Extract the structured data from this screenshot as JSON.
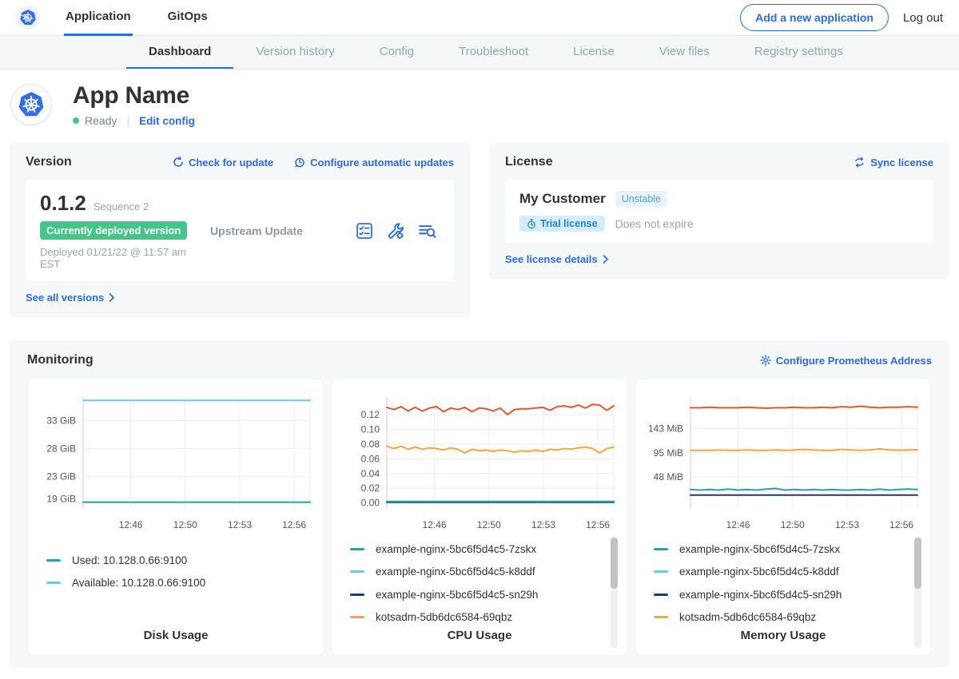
{
  "colors": {
    "accent": "#2b6ce6",
    "brand_blue": "#326de6",
    "green": "#44c58a",
    "teal": "#28a3a3",
    "light_blue": "#6fc9e4",
    "navy": "#203a70",
    "orange": "#f7a43c",
    "red_orange": "#e8562f",
    "panel_bg": "#f5f8f9"
  },
  "icons": {
    "brand": "kubernetes-logo",
    "check_update": "refresh-icon",
    "auto_update": "clock-refresh-icon",
    "version_diff": "checklist-icon",
    "version_tools": "wrench-gear-icon",
    "version_logs": "file-search-icon",
    "sync": "sync-arrows-icon",
    "trial": "stopwatch-icon",
    "prometheus": "gear-icon",
    "see_more": "chevron-right-icon",
    "status": "green-dot"
  },
  "nav": {
    "tabs": [
      {
        "label": "Application"
      },
      {
        "label": "GitOps"
      }
    ],
    "active_tab": "Application",
    "add_button_label": "Add a new application",
    "logout_label": "Log out"
  },
  "subnav": {
    "tabs": [
      "Dashboard",
      "Version history",
      "Config",
      "Troubleshoot",
      "License",
      "View files",
      "Registry settings"
    ],
    "active": "Dashboard"
  },
  "app_header": {
    "name": "App Name",
    "status_label": "Ready",
    "edit_config_label": "Edit config"
  },
  "version_card": {
    "title": "Version",
    "check_update_label": "Check for update",
    "auto_update_label": "Configure automatic updates",
    "version_number": "0.1.2",
    "sequence": "Sequence 2",
    "deployed_badge": "Currently deployed version",
    "deployed_at": "Deployed 01/21/22 @ 11:57 am EST",
    "source": "Upstream Update",
    "see_all_label": "See all versions"
  },
  "license_card": {
    "title": "License",
    "sync_label": "Sync license",
    "customer": "My Customer",
    "channel_badge": "Unstable",
    "type_badge": "Trial license",
    "expiry": "Does not expire",
    "details_label": "See license details"
  },
  "monitoring": {
    "title": "Monitoring",
    "configure_label": "Configure Prometheus Address"
  },
  "chart_data": [
    {
      "type": "line",
      "title": "Disk Usage",
      "xticks": [
        "12:46",
        "12:50",
        "12:53",
        "12:56"
      ],
      "ylim": [
        17.2,
        37.2
      ],
      "yticks": [
        {
          "label": "33 GiB",
          "value": 33
        },
        {
          "label": "28 GiB",
          "value": 28
        },
        {
          "label": "23 GiB",
          "value": 23
        },
        {
          "label": "19 GiB",
          "value": 19
        }
      ],
      "series": [
        {
          "name": "Available: 10.128.0.66:9100",
          "color": "#6fc9e4",
          "values": [
            36.6,
            36.6
          ]
        },
        {
          "name": "Used: 10.128.0.66:9100",
          "color": "#28a3a3",
          "values": [
            18.4,
            18.4
          ]
        }
      ],
      "legend": [
        {
          "label": "Used: 10.128.0.66:9100",
          "color": "#28a3a3"
        },
        {
          "label": "Available: 10.128.0.66:9100",
          "color": "#6fc9e4"
        }
      ],
      "scrollbar": false
    },
    {
      "type": "line",
      "title": "CPU Usage",
      "xticks": [
        "12:46",
        "12:50",
        "12:53",
        "12:56"
      ],
      "ylim": [
        -0.008,
        0.144
      ],
      "yticks": [
        {
          "label": "0.12",
          "value": 0.12
        },
        {
          "label": "0.10",
          "value": 0.1
        },
        {
          "label": "0.08",
          "value": 0.08
        },
        {
          "label": "0.06",
          "value": 0.06
        },
        {
          "label": "0.04",
          "value": 0.04
        },
        {
          "label": "0.02",
          "value": 0.02
        },
        {
          "label": "0.00",
          "value": 0.0
        }
      ],
      "series": [
        {
          "name": "example-nginx-5bc6f5d4c5-k8ddf",
          "color": "#6fc9e4",
          "values": [
            0.0015,
            0.0015
          ]
        },
        {
          "name": "example-nginx-5bc6f5d4c5-sn29h",
          "color": "#203a70",
          "values": [
            0.001,
            0.001
          ]
        },
        {
          "name": "example-nginx-5bc6f5d4c5-7zskx",
          "color": "#28a3a3",
          "values": [
            0.002,
            0.002
          ]
        },
        {
          "name": "kotsadm-5db6dc6584-69qbz",
          "color": "#f7a43c",
          "values": [
            0.077,
            0.074,
            0.077,
            0.073,
            0.076,
            0.073,
            0.075,
            0.074,
            0.072,
            0.075,
            0.073,
            0.068,
            0.073,
            0.071,
            0.072,
            0.07,
            0.072,
            0.071,
            0.069,
            0.071,
            0.07,
            0.072,
            0.07,
            0.073,
            0.072,
            0.074,
            0.073,
            0.075,
            0.076,
            0.074,
            0.068,
            0.074,
            0.076
          ]
        },
        {
          "name": "",
          "color": "#e8562f",
          "values": [
            0.13,
            0.127,
            0.131,
            0.125,
            0.13,
            0.125,
            0.129,
            0.131,
            0.124,
            0.129,
            0.127,
            0.13,
            0.124,
            0.129,
            0.128,
            0.125,
            0.129,
            0.12,
            0.127,
            0.128,
            0.128,
            0.129,
            0.13,
            0.126,
            0.131,
            0.132,
            0.13,
            0.133,
            0.129,
            0.134,
            0.133,
            0.126,
            0.132
          ]
        }
      ],
      "legend": [
        {
          "label": "example-nginx-5bc6f5d4c5-7zskx",
          "color": "#28a3a3"
        },
        {
          "label": "example-nginx-5bc6f5d4c5-k8ddf",
          "color": "#6fc9e4"
        },
        {
          "label": "example-nginx-5bc6f5d4c5-sn29h",
          "color": "#203a70"
        },
        {
          "label": "kotsadm-5db6dc6584-69qbz",
          "color": "#f7a43c"
        }
      ],
      "scrollbar": true
    },
    {
      "type": "line",
      "title": "Memory Usage",
      "xticks": [
        "12:46",
        "12:50",
        "12:53",
        "12:56"
      ],
      "ylim": [
        -15,
        205
      ],
      "yticks": [
        {
          "label": "143 MiB",
          "value": 143
        },
        {
          "label": "95 MiB",
          "value": 95
        },
        {
          "label": "48 MiB",
          "value": 48
        }
      ],
      "series": [
        {
          "name": "example-nginx-5bc6f5d4c5-sn29h",
          "color": "#203a70",
          "values": [
            12,
            12
          ]
        },
        {
          "name": "example-nginx-5bc6f5d4c5-7zskx",
          "color": "#28a3a3",
          "values": [
            23,
            22,
            23,
            22,
            24,
            22,
            23,
            22,
            24,
            25,
            22,
            23,
            22,
            23,
            22,
            23,
            22,
            22,
            23,
            22,
            24,
            22,
            23,
            24,
            23
          ]
        },
        {
          "name": "kotsadm-5db6dc6584-69qbz",
          "color": "#f7a43c",
          "values": [
            100,
            100,
            100,
            101,
            100,
            100,
            101,
            100,
            100,
            101,
            100,
            101,
            102,
            101,
            100,
            100,
            102,
            101,
            100,
            101,
            103,
            101,
            100,
            101,
            101
          ]
        },
        {
          "name": "",
          "color": "#e8562f",
          "values": [
            184,
            184,
            185,
            184,
            184,
            184,
            185,
            184,
            183,
            184,
            184,
            185,
            184,
            184,
            185,
            184,
            186,
            185,
            187,
            185,
            184,
            185,
            185,
            186,
            185
          ]
        }
      ],
      "legend": [
        {
          "label": "example-nginx-5bc6f5d4c5-7zskx",
          "color": "#28a3a3"
        },
        {
          "label": "example-nginx-5bc6f5d4c5-k8ddf",
          "color": "#6fc9e4"
        },
        {
          "label": "example-nginx-5bc6f5d4c5-sn29h",
          "color": "#203a70"
        },
        {
          "label": "kotsadm-5db6dc6584-69qbz",
          "color": "#f7a43c"
        }
      ],
      "scrollbar": true
    }
  ]
}
